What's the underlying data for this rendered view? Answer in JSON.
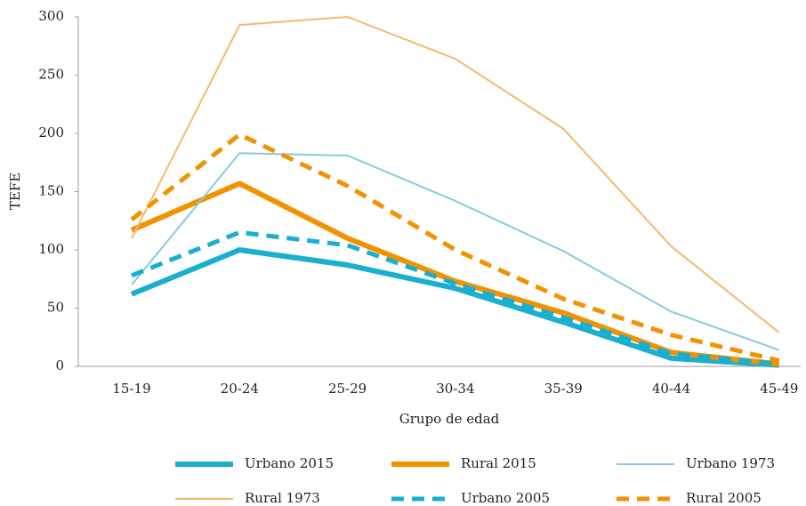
{
  "chart_data": {
    "type": "line",
    "x_label": "Grupo de edad",
    "y_label": "TEFE",
    "categories": [
      "15-19",
      "20-24",
      "25-29",
      "30-34",
      "35-39",
      "40-44",
      "45-49"
    ],
    "ylim": [
      0,
      300
    ],
    "yticks": [
      0,
      50,
      100,
      150,
      200,
      250,
      300
    ],
    "series": [
      {
        "name": "Urbano 2015",
        "color": "#1aafcf",
        "line_width": 6,
        "dashed": false,
        "values": [
          62,
          100,
          87,
          67,
          38,
          7,
          1
        ]
      },
      {
        "name": "Rural 2015",
        "color": "#f39200",
        "line_width": 6,
        "dashed": false,
        "values": [
          117,
          157,
          110,
          73,
          46,
          12,
          2
        ]
      },
      {
        "name": "Urbano 1973",
        "color": "#86cbe0",
        "line_width": 2,
        "dashed": false,
        "values": [
          70,
          183,
          181,
          142,
          99,
          47,
          14
        ]
      },
      {
        "name": "Rural 1973",
        "color": "#f7b86a",
        "line_width": 2,
        "dashed": false,
        "values": [
          110,
          293,
          300,
          264,
          204,
          103,
          29
        ]
      },
      {
        "name": "Urbano 2005",
        "color": "#1aafcf",
        "line_width": 5,
        "dashed": true,
        "values": [
          78,
          115,
          104,
          71,
          42,
          11,
          2
        ]
      },
      {
        "name": "Rural 2005",
        "color": "#f39200",
        "line_width": 5,
        "dashed": true,
        "values": [
          126,
          199,
          155,
          100,
          58,
          27,
          5
        ]
      }
    ]
  }
}
